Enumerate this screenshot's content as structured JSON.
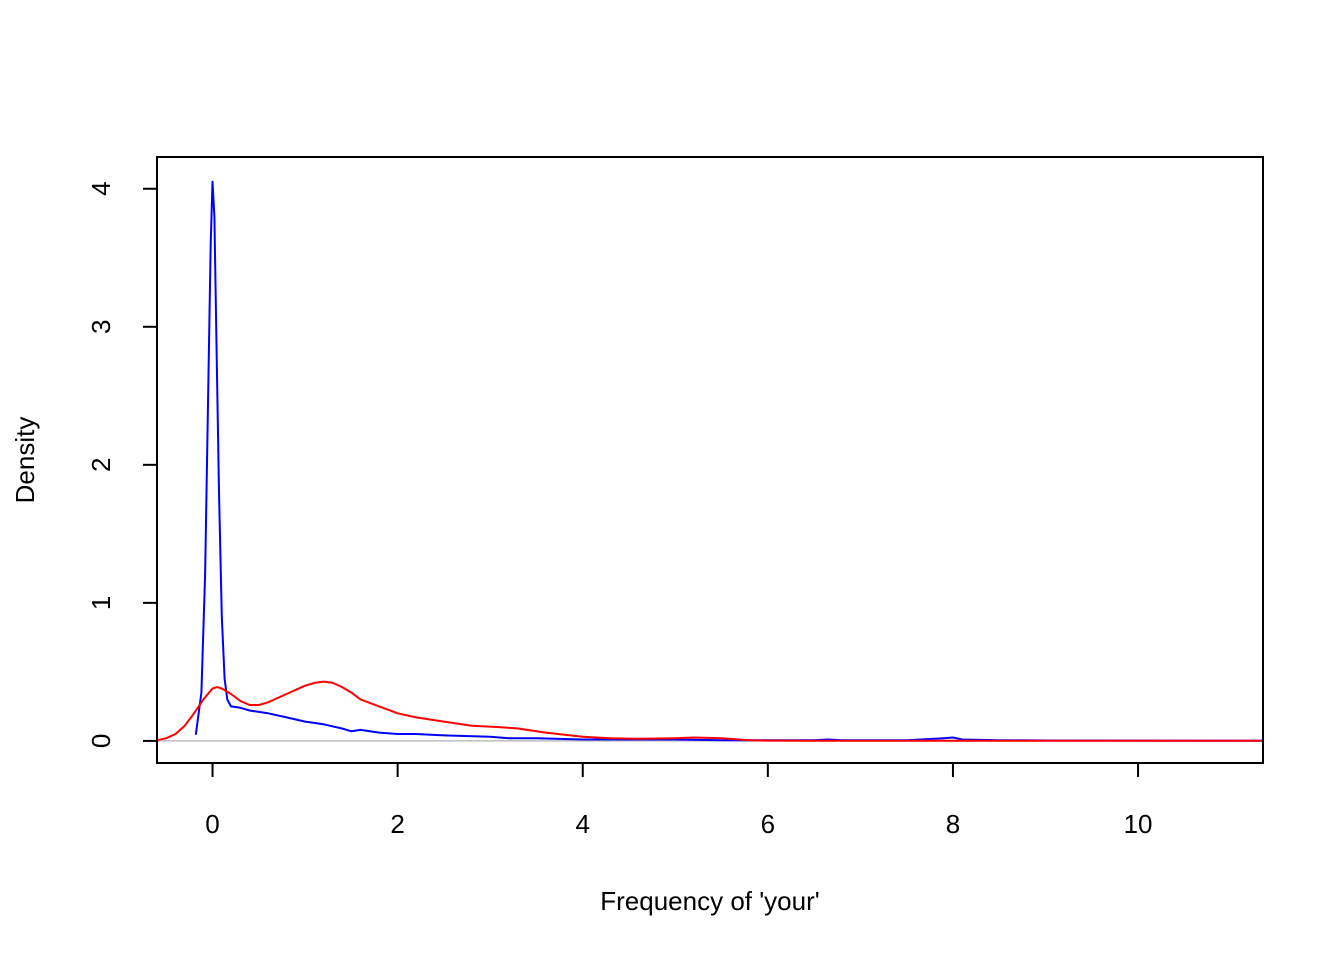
{
  "chart_data": {
    "type": "line",
    "title": "",
    "xlabel": "Frequency of 'your'",
    "ylabel": "Density",
    "xlim": [
      -0.6,
      11.35
    ],
    "ylim": [
      -0.16,
      4.23
    ],
    "x_ticks": [
      0,
      2,
      4,
      6,
      8,
      10
    ],
    "x_tick_labels": [
      "0",
      "2",
      "4",
      "6",
      "8",
      "10"
    ],
    "y_ticks": [
      0,
      1,
      2,
      3,
      4
    ],
    "y_tick_labels": [
      "0",
      "1",
      "2",
      "3",
      "4"
    ],
    "grid": false,
    "legend": null,
    "baseline": {
      "y": 0,
      "color": "#bebebe"
    },
    "series": [
      {
        "color": "#0000ff",
        "x": [
          -0.18,
          -0.12,
          -0.08,
          -0.05,
          -0.02,
          0.0,
          0.02,
          0.04,
          0.07,
          0.1,
          0.13,
          0.16,
          0.2,
          0.3,
          0.4,
          0.5,
          0.6,
          0.8,
          1.0,
          1.2,
          1.4,
          1.5,
          1.6,
          1.8,
          2.0,
          2.2,
          2.5,
          3.0,
          3.2,
          3.5,
          4.0,
          4.5,
          5.0,
          5.5,
          6.0,
          6.5,
          6.65,
          6.8,
          7.5,
          7.9,
          8.0,
          8.1,
          8.5,
          9.0,
          10.0,
          11.35
        ],
        "y": [
          0.05,
          0.35,
          1.2,
          2.4,
          3.6,
          4.05,
          3.8,
          3.0,
          1.8,
          0.9,
          0.45,
          0.3,
          0.25,
          0.24,
          0.22,
          0.21,
          0.2,
          0.17,
          0.14,
          0.12,
          0.09,
          0.07,
          0.08,
          0.06,
          0.05,
          0.05,
          0.04,
          0.03,
          0.02,
          0.02,
          0.01,
          0.01,
          0.01,
          0.005,
          0.005,
          0.005,
          0.01,
          0.005,
          0.005,
          0.02,
          0.025,
          0.01,
          0.005,
          0.003,
          0.002,
          0.001
        ]
      },
      {
        "color": "#ff0000",
        "x": [
          -0.6,
          -0.5,
          -0.4,
          -0.3,
          -0.2,
          -0.1,
          0.0,
          0.05,
          0.1,
          0.2,
          0.3,
          0.4,
          0.5,
          0.6,
          0.7,
          0.8,
          0.9,
          1.0,
          1.1,
          1.2,
          1.3,
          1.4,
          1.5,
          1.6,
          1.8,
          2.0,
          2.2,
          2.5,
          2.8,
          3.1,
          3.3,
          3.6,
          4.0,
          4.3,
          4.6,
          5.0,
          5.2,
          5.5,
          5.8,
          6.0,
          6.5,
          7.0,
          8.0,
          9.0,
          10.0,
          11.35
        ],
        "y": [
          0.005,
          0.02,
          0.05,
          0.11,
          0.2,
          0.3,
          0.38,
          0.39,
          0.38,
          0.34,
          0.29,
          0.26,
          0.26,
          0.28,
          0.31,
          0.34,
          0.37,
          0.4,
          0.42,
          0.43,
          0.42,
          0.39,
          0.35,
          0.3,
          0.25,
          0.2,
          0.17,
          0.14,
          0.11,
          0.1,
          0.09,
          0.06,
          0.03,
          0.02,
          0.015,
          0.02,
          0.025,
          0.02,
          0.005,
          0.002,
          0.001,
          0.001,
          0.001,
          0.001,
          0.001,
          0.001
        ]
      }
    ]
  }
}
